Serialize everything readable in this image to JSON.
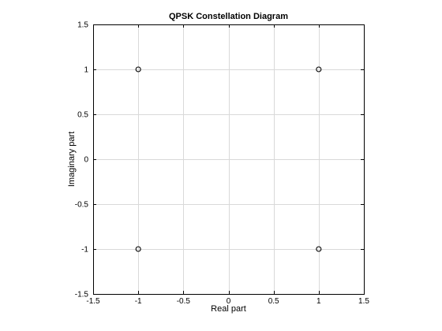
{
  "chart_data": {
    "type": "scatter",
    "title": "QPSK Constellation Diagram",
    "xlabel": "Real part",
    "ylabel": "Imaginary part",
    "xlim": [
      -1.5,
      1.5
    ],
    "ylim": [
      -1.5,
      1.5
    ],
    "xticks": [
      -1.5,
      -1,
      -0.5,
      0,
      0.5,
      1,
      1.5
    ],
    "xtick_labels": [
      "-1.5",
      "-1",
      "-0.5",
      "0",
      "0.5",
      "1",
      "1.5"
    ],
    "yticks": [
      -1.5,
      -1,
      -0.5,
      0,
      0.5,
      1,
      1.5
    ],
    "ytick_labels": [
      "-1.5",
      "-1",
      "-0.5",
      "0",
      "0.5",
      "1",
      "1.5"
    ],
    "grid": true,
    "marker": "circle-open",
    "series": [
      {
        "points": [
          {
            "x": -1,
            "y": 1
          },
          {
            "x": 1,
            "y": 1
          },
          {
            "x": -1,
            "y": -1
          },
          {
            "x": 1,
            "y": -1
          }
        ]
      }
    ]
  },
  "colors": {
    "axis": "#000000",
    "grid": "#d9d9d9",
    "marker": "#000000",
    "background": "#ffffff"
  }
}
